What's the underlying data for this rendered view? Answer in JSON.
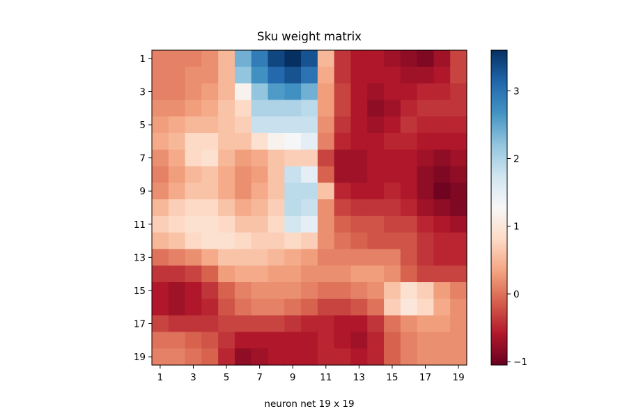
{
  "chart_data": {
    "type": "heatmap",
    "title": "Sku weight matrix",
    "xlabel": "neuron net 19 x 19",
    "ylabel": "",
    "rows": 19,
    "cols": 19,
    "x_ticks": [
      "1",
      "3",
      "5",
      "7",
      "9",
      "11",
      "13",
      "15",
      "17",
      "19"
    ],
    "y_ticks": [
      "1",
      "3",
      "5",
      "7",
      "9",
      "11",
      "13",
      "15",
      "17",
      "19"
    ],
    "colormap": "RdBu",
    "colorbar": {
      "min": -1.05,
      "max": 3.6,
      "ticks": [
        "−1",
        "0",
        "1",
        "2",
        "3"
      ],
      "tick_values": [
        -1,
        0,
        1,
        2,
        3
      ]
    },
    "values": [
      [
        0.1,
        0.1,
        0.1,
        0.2,
        0.5,
        2.4,
        2.9,
        3.4,
        3.6,
        3.3,
        0.5,
        -0.4,
        -0.6,
        -0.6,
        -0.7,
        -0.8,
        -0.9,
        -0.7,
        -0.3
      ],
      [
        0.1,
        0.1,
        0.2,
        0.2,
        0.5,
        2.2,
        2.7,
        3.1,
        3.3,
        3.0,
        0.4,
        -0.4,
        -0.6,
        -0.6,
        -0.6,
        -0.7,
        -0.7,
        -0.6,
        -0.3
      ],
      [
        0.1,
        0.1,
        0.2,
        0.3,
        0.5,
        1.2,
        2.2,
        2.6,
        2.7,
        2.4,
        0.3,
        -0.3,
        -0.6,
        -0.7,
        -0.6,
        -0.6,
        -0.5,
        -0.5,
        -0.4
      ],
      [
        0.2,
        0.2,
        0.3,
        0.4,
        0.6,
        0.8,
        2.0,
        2.0,
        2.0,
        1.9,
        0.3,
        -0.3,
        -0.6,
        -0.8,
        -0.7,
        -0.5,
        -0.4,
        -0.4,
        -0.4
      ],
      [
        0.3,
        0.4,
        0.5,
        0.5,
        0.6,
        0.7,
        1.8,
        1.8,
        1.8,
        1.8,
        0.2,
        -0.4,
        -0.6,
        -0.7,
        -0.6,
        -0.4,
        -0.5,
        -0.5,
        -0.5
      ],
      [
        0.4,
        0.5,
        0.8,
        0.8,
        0.6,
        0.6,
        0.9,
        1.2,
        1.3,
        1.5,
        0.1,
        -0.5,
        -0.6,
        -0.6,
        -0.5,
        -0.5,
        -0.6,
        -0.6,
        -0.6
      ],
      [
        0.2,
        0.4,
        0.8,
        0.9,
        0.5,
        0.3,
        0.4,
        0.6,
        0.7,
        0.7,
        -0.3,
        -0.7,
        -0.7,
        -0.6,
        -0.6,
        -0.6,
        -0.7,
        -0.8,
        -0.7
      ],
      [
        0.1,
        0.3,
        0.5,
        0.6,
        0.4,
        0.2,
        0.3,
        0.6,
        1.8,
        1.5,
        -0.1,
        -0.7,
        -0.7,
        -0.6,
        -0.6,
        -0.6,
        -0.8,
        -0.9,
        -0.8
      ],
      [
        0.2,
        0.4,
        0.6,
        0.6,
        0.4,
        0.2,
        0.4,
        0.6,
        1.9,
        1.9,
        0.6,
        -0.5,
        -0.6,
        -0.6,
        -0.5,
        -0.6,
        -0.8,
        -1.0,
        -0.9
      ],
      [
        0.5,
        0.7,
        0.8,
        0.8,
        0.6,
        0.4,
        0.5,
        0.7,
        1.9,
        1.8,
        0.2,
        -0.3,
        -0.4,
        -0.4,
        -0.4,
        -0.5,
        -0.7,
        -0.8,
        -0.9
      ],
      [
        0.7,
        0.8,
        0.9,
        0.9,
        0.8,
        0.6,
        0.6,
        0.8,
        1.7,
        1.5,
        0.2,
        -0.1,
        -0.2,
        -0.2,
        -0.3,
        -0.3,
        -0.5,
        -0.6,
        -0.7
      ],
      [
        0.5,
        0.6,
        0.8,
        0.9,
        0.9,
        0.8,
        0.7,
        0.7,
        0.8,
        0.7,
        0.2,
        0.0,
        -0.1,
        -0.2,
        -0.2,
        -0.2,
        -0.4,
        -0.5,
        -0.5
      ],
      [
        0.0,
        0.1,
        0.2,
        0.4,
        0.6,
        0.6,
        0.6,
        0.5,
        0.4,
        0.3,
        0.1,
        0.1,
        0.1,
        0.1,
        0.1,
        -0.2,
        -0.4,
        -0.5,
        -0.5
      ],
      [
        -0.4,
        -0.4,
        -0.3,
        -0.1,
        0.3,
        0.4,
        0.4,
        0.3,
        0.3,
        0.2,
        0.2,
        0.2,
        0.3,
        0.3,
        0.2,
        -0.1,
        -0.3,
        -0.3,
        -0.3
      ],
      [
        -0.6,
        -0.7,
        -0.6,
        -0.4,
        -0.1,
        0.1,
        0.2,
        0.2,
        0.2,
        0.1,
        0.0,
        0.0,
        0.1,
        0.2,
        0.6,
        0.9,
        0.7,
        0.3,
        0.1
      ],
      [
        -0.6,
        -0.7,
        -0.6,
        -0.5,
        -0.2,
        0.0,
        0.1,
        0.1,
        0.0,
        -0.1,
        -0.3,
        -0.3,
        -0.2,
        0.0,
        0.7,
        1.0,
        0.8,
        0.4,
        0.2
      ],
      [
        -0.3,
        -0.4,
        -0.4,
        -0.4,
        -0.3,
        -0.3,
        -0.3,
        -0.3,
        -0.4,
        -0.5,
        -0.5,
        -0.6,
        -0.6,
        -0.4,
        0.0,
        0.2,
        0.3,
        0.3,
        0.2
      ],
      [
        0.0,
        0.0,
        -0.1,
        -0.2,
        -0.4,
        -0.6,
        -0.6,
        -0.6,
        -0.6,
        -0.6,
        -0.5,
        -0.6,
        -0.7,
        -0.5,
        -0.1,
        0.1,
        0.2,
        0.2,
        0.2
      ],
      [
        0.1,
        0.1,
        0.0,
        -0.1,
        -0.5,
        -0.8,
        -0.7,
        -0.6,
        -0.6,
        -0.6,
        -0.5,
        -0.5,
        -0.6,
        -0.5,
        -0.1,
        0.1,
        0.2,
        0.2,
        0.2
      ]
    ]
  }
}
